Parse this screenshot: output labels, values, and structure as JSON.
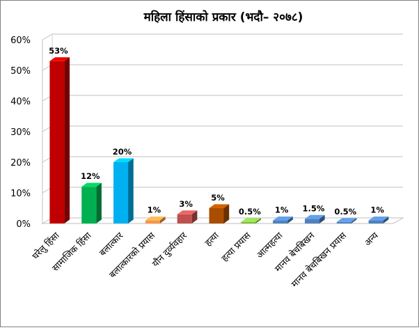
{
  "chart_data": {
    "type": "bar",
    "title": "महिला हिंसाको प्रकार  (भदौ– २०७८)",
    "xlabel": "",
    "ylabel": "",
    "ylim": [
      0,
      60
    ],
    "yticks": [
      "0%",
      "10%",
      "20%",
      "30%",
      "40%",
      "50%",
      "60%"
    ],
    "grid": true,
    "legend": "none",
    "categories": [
      "घरेलु हिंसा",
      "सामाजिक हिंसा",
      "बलात्कार",
      "बलात्कारको प्रयास",
      "यौन दुर्व्यवहार",
      "हत्या",
      "हत्या प्रयास",
      "आत्महत्या",
      "मानव बेचबिखन",
      "मानव बेचबिखन प्रयास",
      "अन्य"
    ],
    "values": [
      53,
      12,
      20,
      1,
      3,
      5,
      0.5,
      1,
      1.5,
      0.5,
      1
    ],
    "labels": [
      "53%",
      "12%",
      "20%",
      "1%",
      "3%",
      "5%",
      "0.5%",
      "1%",
      "1.5%",
      "0.5%",
      "1%"
    ],
    "colors": [
      "#c00000",
      "#00b050",
      "#00b0f0",
      "#f79646",
      "#c0504d",
      "#a94e00",
      "#7dbb42",
      "#4f81bd",
      "#4f81bd",
      "#4f81bd",
      "#4f81bd"
    ]
  }
}
